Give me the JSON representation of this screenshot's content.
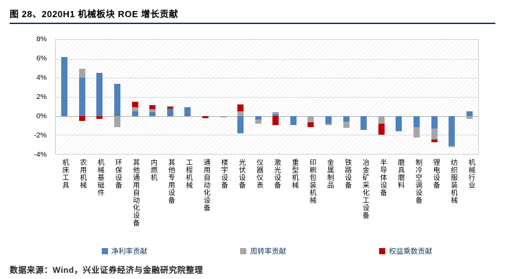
{
  "title": "图 28、2020H1 机械板块 ROE 增长贡献",
  "footer": {
    "source": "数据来源：Wind，兴业证券经济与金融研究院整理"
  },
  "colors": {
    "title_rule": "#17375e",
    "bar_blue": "#4f81bd",
    "bar_gray": "#a6a6a6",
    "bar_red": "#c00000"
  },
  "chart_data": {
    "type": "bar",
    "stacked": true,
    "title": "图 28、2020H1 机械板块 ROE 增长贡献",
    "xlabel": "",
    "ylabel": "",
    "ylim": [
      -4,
      8
    ],
    "ytick_step": 2,
    "ytick_labels": [
      "8%",
      "6%",
      "4%",
      "2%",
      "0%",
      "-2%",
      "-4%"
    ],
    "grid": true,
    "legend_position": "bottom",
    "categories": [
      "机床工具",
      "农用机械",
      "机械基础件",
      "环保设备",
      "其他通用自动化设备",
      "内燃机",
      "其他专用设备",
      "工程机械",
      "通用自动化设备",
      "楼宇设备",
      "光伏设备",
      "仪器仪表",
      "激光设备",
      "重型机械",
      "印刷包装机械",
      "金属制品",
      "铁路设备",
      "冶金矿采化工设备",
      "半导体设备",
      "磨具磨料",
      "制冷空调设备",
      "锂电设备",
      "纺织服装机械",
      "机械行业"
    ],
    "series": [
      {
        "name": "净利率贡献",
        "color": "#4f81bd",
        "values": [
          6.2,
          4.0,
          4.5,
          3.4,
          0.5,
          0.4,
          0.8,
          0.9,
          0,
          0,
          -1.8,
          -0.4,
          0.2,
          -0.95,
          0,
          -0.85,
          -0.6,
          -1.5,
          0,
          -1.6,
          -1.2,
          -1.3,
          -3.1,
          0.5
        ]
      },
      {
        "name": "周转率贡献",
        "color": "#a6a6a6",
        "values": [
          0,
          1.0,
          0,
          -1.2,
          0.4,
          0.3,
          0,
          0,
          0,
          -0.2,
          0.5,
          -0.4,
          0.2,
          0,
          -0.65,
          -0.15,
          -0.65,
          0,
          -0.8,
          0,
          -1.1,
          -1.2,
          -0.2,
          -0.3
        ]
      },
      {
        "name": "权益乘数贡献",
        "color": "#c00000",
        "values": [
          0,
          -0.5,
          -0.35,
          0,
          0.6,
          0.4,
          0.2,
          0,
          -0.25,
          0,
          0.7,
          0,
          -1.0,
          0,
          -0.55,
          0,
          0,
          0,
          -1.15,
          0,
          0,
          -0.3,
          0,
          0
        ]
      }
    ]
  }
}
